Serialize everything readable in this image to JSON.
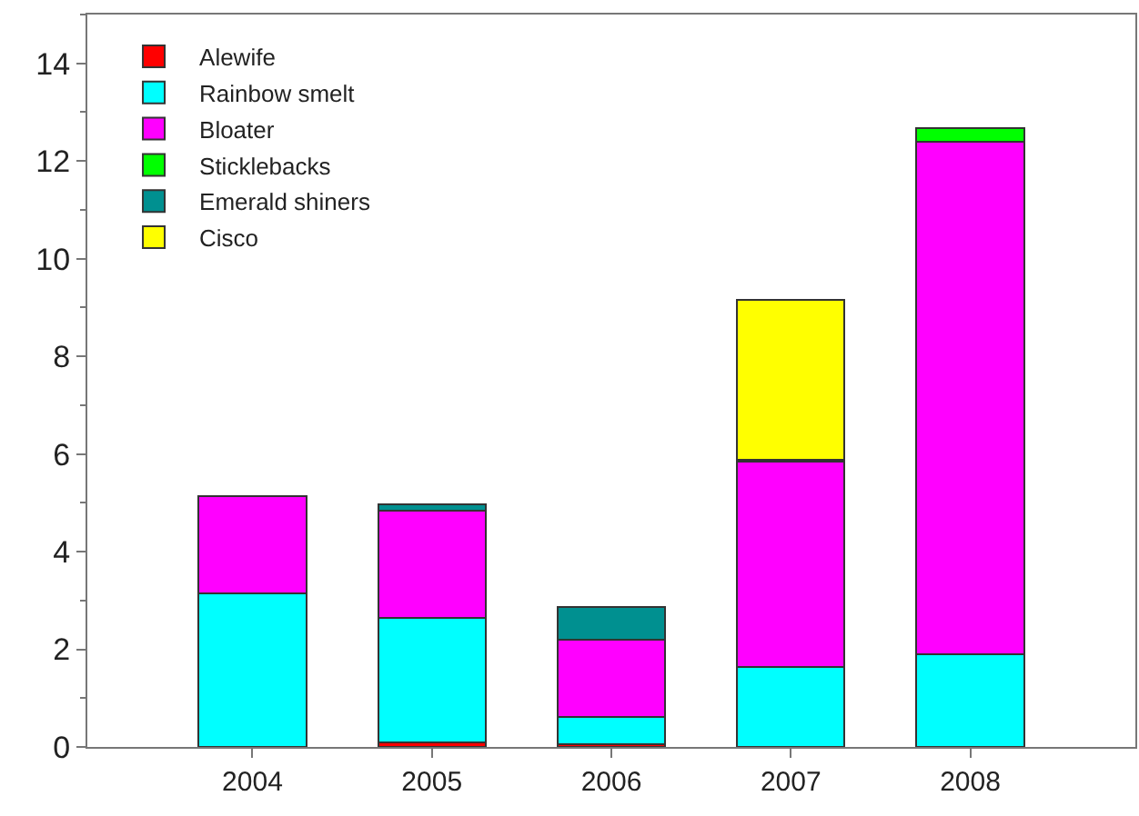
{
  "chart_data": {
    "type": "bar",
    "stacked": true,
    "categories": [
      "2004",
      "2005",
      "2006",
      "2007",
      "2008"
    ],
    "series": [
      {
        "name": "Alewife",
        "color": "#ff0000",
        "values": [
          null,
          0.1,
          0.05,
          null,
          null
        ]
      },
      {
        "name": "Rainbow smelt",
        "color": "#00ffff",
        "values": [
          3.14,
          2.54,
          0.57,
          1.64,
          1.89
        ]
      },
      {
        "name": "Bloater",
        "color": "#ff00ff",
        "values": [
          1.99,
          2.2,
          1.57,
          4.2,
          10.5
        ]
      },
      {
        "name": "Sticklebacks",
        "color": "#00ff00",
        "values": [
          null,
          null,
          null,
          null,
          0.29
        ]
      },
      {
        "name": "Emerald shiners",
        "color": "#009090",
        "values": [
          null,
          0.12,
          0.68,
          0.05,
          null
        ]
      },
      {
        "name": "Cisco",
        "color": "#ffff00",
        "values": [
          null,
          null,
          null,
          3.26,
          null
        ]
      }
    ],
    "ylim": [
      0,
      15
    ],
    "yticks": [
      0,
      2,
      4,
      6,
      8,
      10,
      12,
      14
    ],
    "legend": "top left"
  }
}
